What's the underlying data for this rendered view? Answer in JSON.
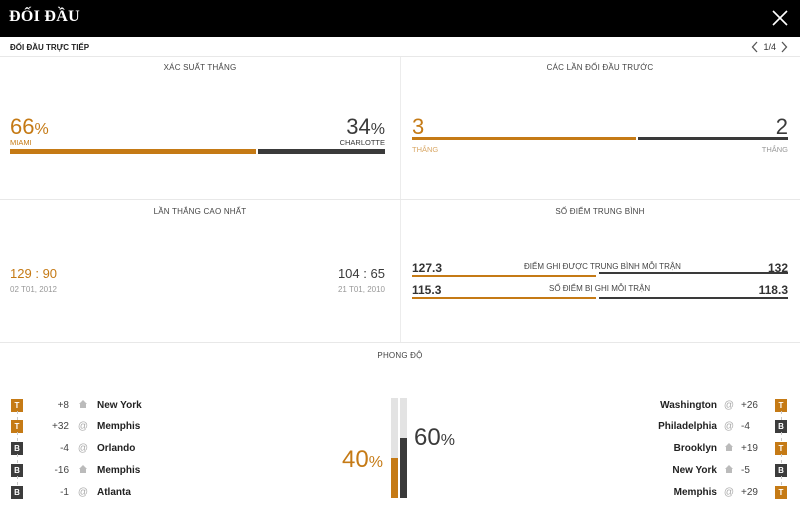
{
  "header": {
    "title": "ĐỐI ĐẦU"
  },
  "subheader": {
    "label": "ĐỐI ĐẦU TRỰC TIẾP",
    "page": "1/4"
  },
  "win_probability": {
    "title": "XÁC SUẤT THẮNG",
    "left_value": "66",
    "left_team": "MIAMI",
    "right_value": "34",
    "right_team": "CHARLOTTE",
    "percent_sign": "%",
    "left_fraction": 0.66
  },
  "previous_meetings": {
    "title": "CÁC LẦN ĐỐI ĐẦU TRƯỚC",
    "left_value": "3",
    "left_label": "THẮNG",
    "right_value": "2",
    "right_label": "THẮNG",
    "left_fraction": 0.6
  },
  "biggest_win": {
    "title": "LẦN THẮNG CAO NHẤT",
    "left_score_a": "129",
    "left_score_b": "90",
    "left_date": "02 T01, 2012",
    "right_score_a": "104",
    "right_score_b": "65",
    "right_date": "21 T01, 2010",
    "separator": ":"
  },
  "average_points": {
    "title": "SỐ ĐIỂM TRUNG BÌNH",
    "rows": [
      {
        "left": "127.3",
        "label": "ĐIỂM GHI ĐƯỢC TRUNG BÌNH MỖI TRẬN",
        "right": "132",
        "left_fraction": 0.49
      },
      {
        "left": "115.3",
        "label": "SỐ ĐIỂM BỊ GHI MỖI TRẬN",
        "right": "118.3",
        "left_fraction": 0.49
      }
    ]
  },
  "form": {
    "title": "PHONG ĐỘ",
    "left_pct": "40",
    "right_pct": "60",
    "percent_sign": "%",
    "left_fraction": 0.4,
    "right_fraction": 0.6,
    "left_games": [
      {
        "result": "T",
        "diff": "+8",
        "loc": "home",
        "opponent": "New York"
      },
      {
        "result": "T",
        "diff": "+32",
        "loc": "away",
        "opponent": "Memphis"
      },
      {
        "result": "B",
        "diff": "-4",
        "loc": "away",
        "opponent": "Orlando"
      },
      {
        "result": "B",
        "diff": "-16",
        "loc": "home",
        "opponent": "Memphis"
      },
      {
        "result": "B",
        "diff": "-1",
        "loc": "away",
        "opponent": "Atlanta"
      }
    ],
    "right_games": [
      {
        "result": "T",
        "diff": "+26",
        "loc": "away",
        "opponent": "Washington"
      },
      {
        "result": "B",
        "diff": "-4",
        "loc": "away",
        "opponent": "Philadelphia"
      },
      {
        "result": "T",
        "diff": "+19",
        "loc": "home",
        "opponent": "Brooklyn"
      },
      {
        "result": "B",
        "diff": "-5",
        "loc": "home",
        "opponent": "New York"
      },
      {
        "result": "T",
        "diff": "+29",
        "loc": "away",
        "opponent": "Memphis"
      }
    ]
  },
  "colors": {
    "accent": "#c57a15",
    "dark": "#3a3a3a"
  }
}
